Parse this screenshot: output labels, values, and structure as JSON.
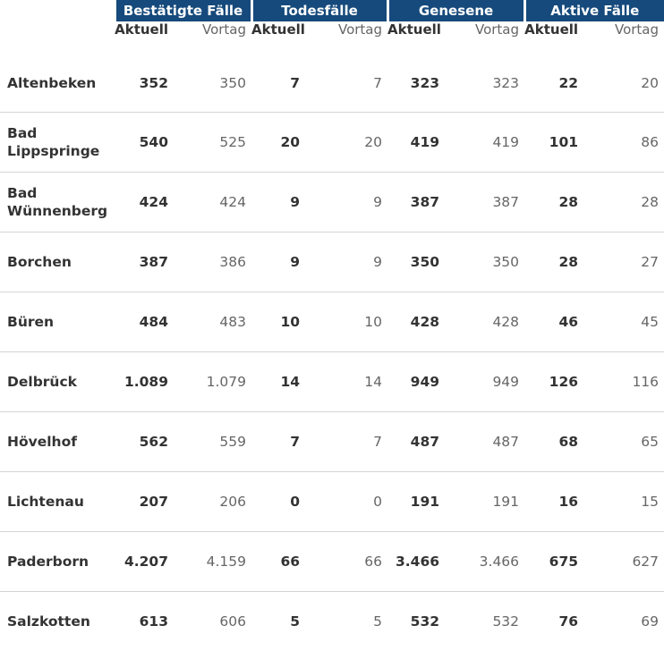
{
  "groups": [
    "Bestätigte Fälle",
    "Todesfälle",
    "Genesene",
    "Aktive Fälle"
  ],
  "subheaders": {
    "current": "Aktuell",
    "previous": "Vortag"
  },
  "rows": [
    {
      "name": "Altenbeken",
      "values": [
        "352",
        "350",
        "7",
        "7",
        "323",
        "323",
        "22",
        "20"
      ]
    },
    {
      "name": "Bad Lippspringe",
      "values": [
        "540",
        "525",
        "20",
        "20",
        "419",
        "419",
        "101",
        "86"
      ]
    },
    {
      "name": "Bad Wünnenberg",
      "values": [
        "424",
        "424",
        "9",
        "9",
        "387",
        "387",
        "28",
        "28"
      ]
    },
    {
      "name": "Borchen",
      "values": [
        "387",
        "386",
        "9",
        "9",
        "350",
        "350",
        "28",
        "27"
      ]
    },
    {
      "name": "Büren",
      "values": [
        "484",
        "483",
        "10",
        "10",
        "428",
        "428",
        "46",
        "45"
      ]
    },
    {
      "name": "Delbrück",
      "values": [
        "1.089",
        "1.079",
        "14",
        "14",
        "949",
        "949",
        "126",
        "116"
      ]
    },
    {
      "name": "Hövelhof",
      "values": [
        "562",
        "559",
        "7",
        "7",
        "487",
        "487",
        "68",
        "65"
      ]
    },
    {
      "name": "Lichtenau",
      "values": [
        "207",
        "206",
        "0",
        "0",
        "191",
        "191",
        "16",
        "15"
      ]
    },
    {
      "name": "Paderborn",
      "values": [
        "4.207",
        "4.159",
        "66",
        "66",
        "3.466",
        "3.466",
        "675",
        "627"
      ]
    },
    {
      "name": "Salzkotten",
      "values": [
        "613",
        "606",
        "5",
        "5",
        "532",
        "532",
        "76",
        "69"
      ]
    }
  ],
  "colors": {
    "header_bg": "#164a7c",
    "header_text": "#ffffff",
    "row_divider": "#d4d4d4",
    "value_text": "#333333",
    "previous_text": "#666666"
  }
}
